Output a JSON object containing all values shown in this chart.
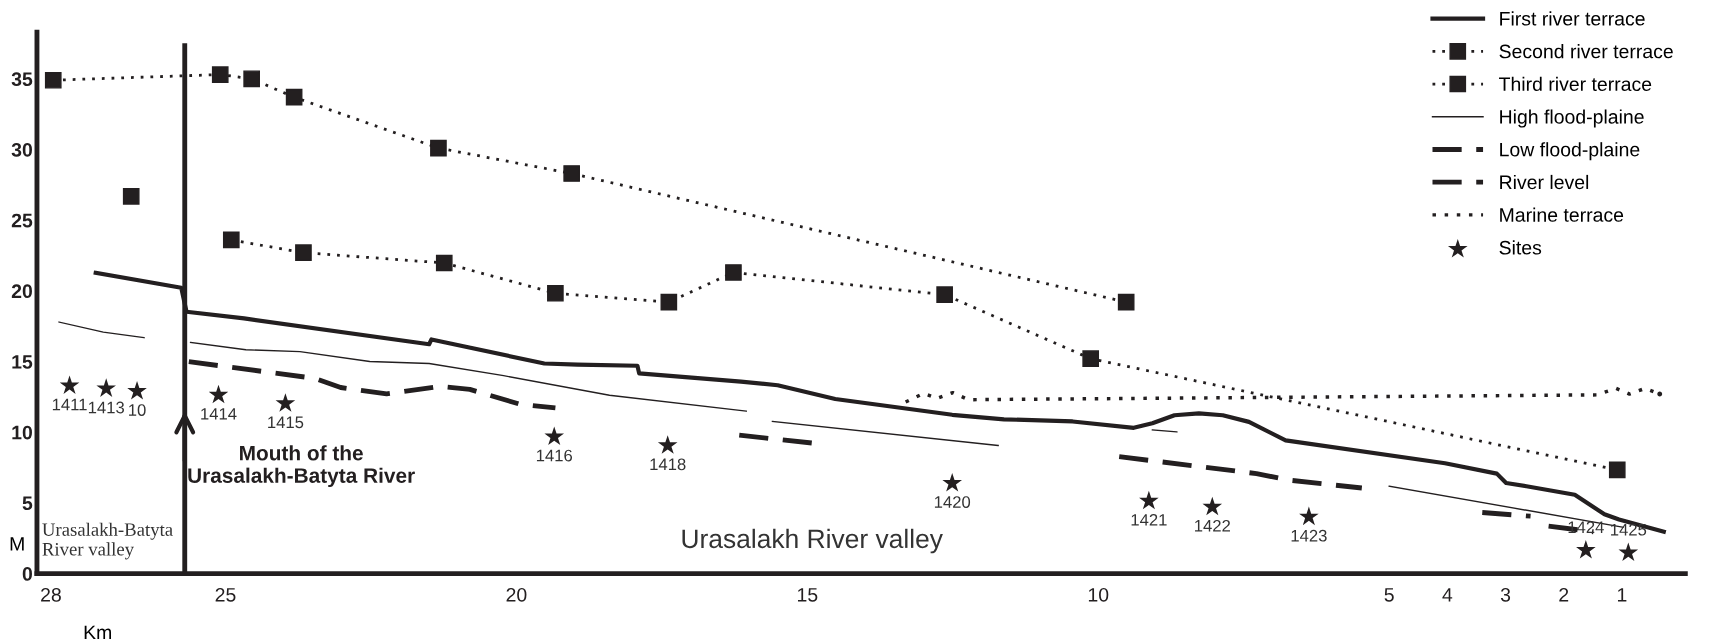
{
  "chart_data": {
    "type": "line",
    "xlabel": "Km",
    "ylabel": "M",
    "xlim": [
      28.24,
      -0.09
    ],
    "ylim": [
      0,
      38.3
    ],
    "xticks": [
      28,
      25,
      20,
      15,
      10,
      5,
      4,
      3,
      2,
      1
    ],
    "yticks": [
      0,
      5,
      10,
      15,
      20,
      25,
      30,
      35
    ],
    "grid": false,
    "legend": "top right",
    "series": [
      {
        "name": "First river terrace",
        "color": "#231f20",
        "line_style": "solid",
        "marker": "none",
        "x": [
          27.23,
          25.76,
          25.67,
          24.68,
          21.5,
          21.46,
          19.52,
          18.95,
          17.92,
          17.89,
          16.14,
          15.51,
          14.52,
          12.51,
          11.62,
          10.44,
          9.39,
          9.07,
          8.69,
          8.27,
          7.86,
          7.41,
          6.78,
          4.04,
          3.15,
          2.99,
          2.64,
          1.81,
          1.3,
          1.05,
          0.28
        ],
        "values": [
          21.27,
          20.22,
          18.52,
          18.05,
          16.22,
          16.56,
          14.86,
          14.78,
          14.7,
          14.16,
          13.58,
          13.32,
          12.35,
          11.23,
          10.91,
          10.76,
          10.31,
          10.63,
          11.2,
          11.33,
          11.2,
          10.73,
          9.42,
          7.8,
          7.07,
          6.41,
          6.18,
          5.58,
          4.19,
          3.82,
          2.96
        ]
      },
      {
        "name": "Second river terrace",
        "color": "#231f20",
        "line_style": "dotted",
        "marker": "square",
        "x": [
          26.62,
          25.7,
          24.9,
          23.66,
          21.24,
          19.33,
          17.38,
          16.27,
          12.64,
          10.13,
          1.08
        ],
        "values": [
          26.68,
          null,
          23.6,
          22.7,
          21.97,
          19.83,
          19.2,
          21.3,
          19.73,
          15.2,
          7.33
        ]
      },
      {
        "name": "Third river terrace",
        "color": "#231f20",
        "line_style": "dotted",
        "marker": "square",
        "x": [
          27.96,
          25.09,
          24.55,
          23.82,
          21.34,
          19.05,
          9.52
        ],
        "values": [
          34.9,
          35.3,
          35.0,
          33.7,
          30.1,
          28.3,
          19.2
        ]
      },
      {
        "name": "High flood-plaine",
        "color": "#231f20",
        "line_style": "solid",
        "marker": "none",
        "x": [
          27.86,
          27.1,
          26.4,
          26.0,
          25.6,
          24.65,
          23.72,
          22.52,
          21.5,
          20.22,
          18.4,
          16.05,
          15.8,
          15.6,
          11.72,
          10.5,
          9.07,
          8.65,
          7.0,
          5.0,
          0.98
        ],
        "values": [
          17.79,
          17.08,
          16.69,
          null,
          16.35,
          15.83,
          15.7,
          15.0,
          14.86,
          14.0,
          12.61,
          11.49,
          null,
          10.76,
          9.06,
          null,
          10.16,
          10.02,
          null,
          6.18,
          3.28
        ]
      },
      {
        "name": "Low flood-plaine",
        "color": "#231f20",
        "line_style": "dashed",
        "marker": "none",
        "x": [
          25.63,
          23.47,
          23.02,
          22.23,
          21.31,
          20.8,
          19.94,
          19.33,
          18.0,
          16.17,
          14.87,
          12.0,
          9.64,
          7.28,
          6.74,
          5.47
        ],
        "values": [
          14.99,
          13.81,
          13.16,
          12.71,
          13.24,
          13.03,
          11.98,
          11.72,
          null,
          9.79,
          9.21,
          null,
          8.27,
          7.07,
          6.62,
          6.05
        ]
      },
      {
        "name": "River level",
        "color": "#231f20",
        "line_style": "dashed",
        "marker": "none",
        "x": [
          3.4,
          2.57,
          2.4,
          2.26,
          1.49
        ],
        "values": [
          4.32,
          4.06,
          null,
          3.35,
          2.96
        ]
      },
      {
        "name": "Marine terrace",
        "color": "#231f20",
        "line_style": "dotted",
        "marker": "none",
        "x": [
          13.31,
          13.0,
          12.77,
          12.5,
          12.23,
          9.64,
          1.43,
          1.1,
          0.87,
          0.6,
          0.35
        ],
        "values": [
          12.14,
          12.75,
          12.4,
          12.8,
          12.3,
          12.38,
          12.64,
          13.1,
          12.7,
          13.1,
          12.7
        ]
      },
      {
        "name": "Sites",
        "type": "scatter",
        "color": "#231f20",
        "marker": "star",
        "x": [
          27.68,
          27.05,
          26.52,
          25.12,
          23.97,
          19.35,
          17.4,
          12.51,
          9.13,
          8.04,
          6.38,
          1.62,
          0.89
        ],
        "values": [
          13.29,
          13.08,
          12.9,
          12.63,
          12.03,
          9.68,
          9.06,
          6.39,
          5.13,
          4.71,
          4.01,
          1.65,
          1.47
        ]
      }
    ],
    "ref_lines": [
      {
        "axis": "x",
        "value": 25.7,
        "label": "Mouth of the\nUrasalakh-Batyta River",
        "color": "#231f20",
        "line_style": "solid"
      }
    ],
    "annotations": [
      "Urasalakh-Batyta\nRiver valley",
      "Urasalakh River valley",
      {
        "text": "1411",
        "x": 27.68,
        "y": 13.29
      },
      {
        "text": "1413",
        "x": 27.05,
        "y": 13.08
      },
      {
        "text": "10",
        "x": 26.52,
        "y": 12.9
      },
      {
        "text": "1414",
        "x": 25.12,
        "y": 12.63
      },
      {
        "text": "1415",
        "x": 23.97,
        "y": 12.03
      },
      {
        "text": "1416",
        "x": 19.35,
        "y": 9.68
      },
      {
        "text": "1418",
        "x": 17.4,
        "y": 9.06
      },
      {
        "text": "1420",
        "x": 12.51,
        "y": 6.39
      },
      {
        "text": "1421",
        "x": 9.13,
        "y": 5.13
      },
      {
        "text": "1422",
        "x": 8.04,
        "y": 4.71
      },
      {
        "text": "1423",
        "x": 6.38,
        "y": 4.01
      },
      {
        "text": "1424",
        "x": 1.62,
        "y": 1.65
      },
      {
        "text": "1425",
        "x": 0.89,
        "y": 1.47
      }
    ]
  }
}
